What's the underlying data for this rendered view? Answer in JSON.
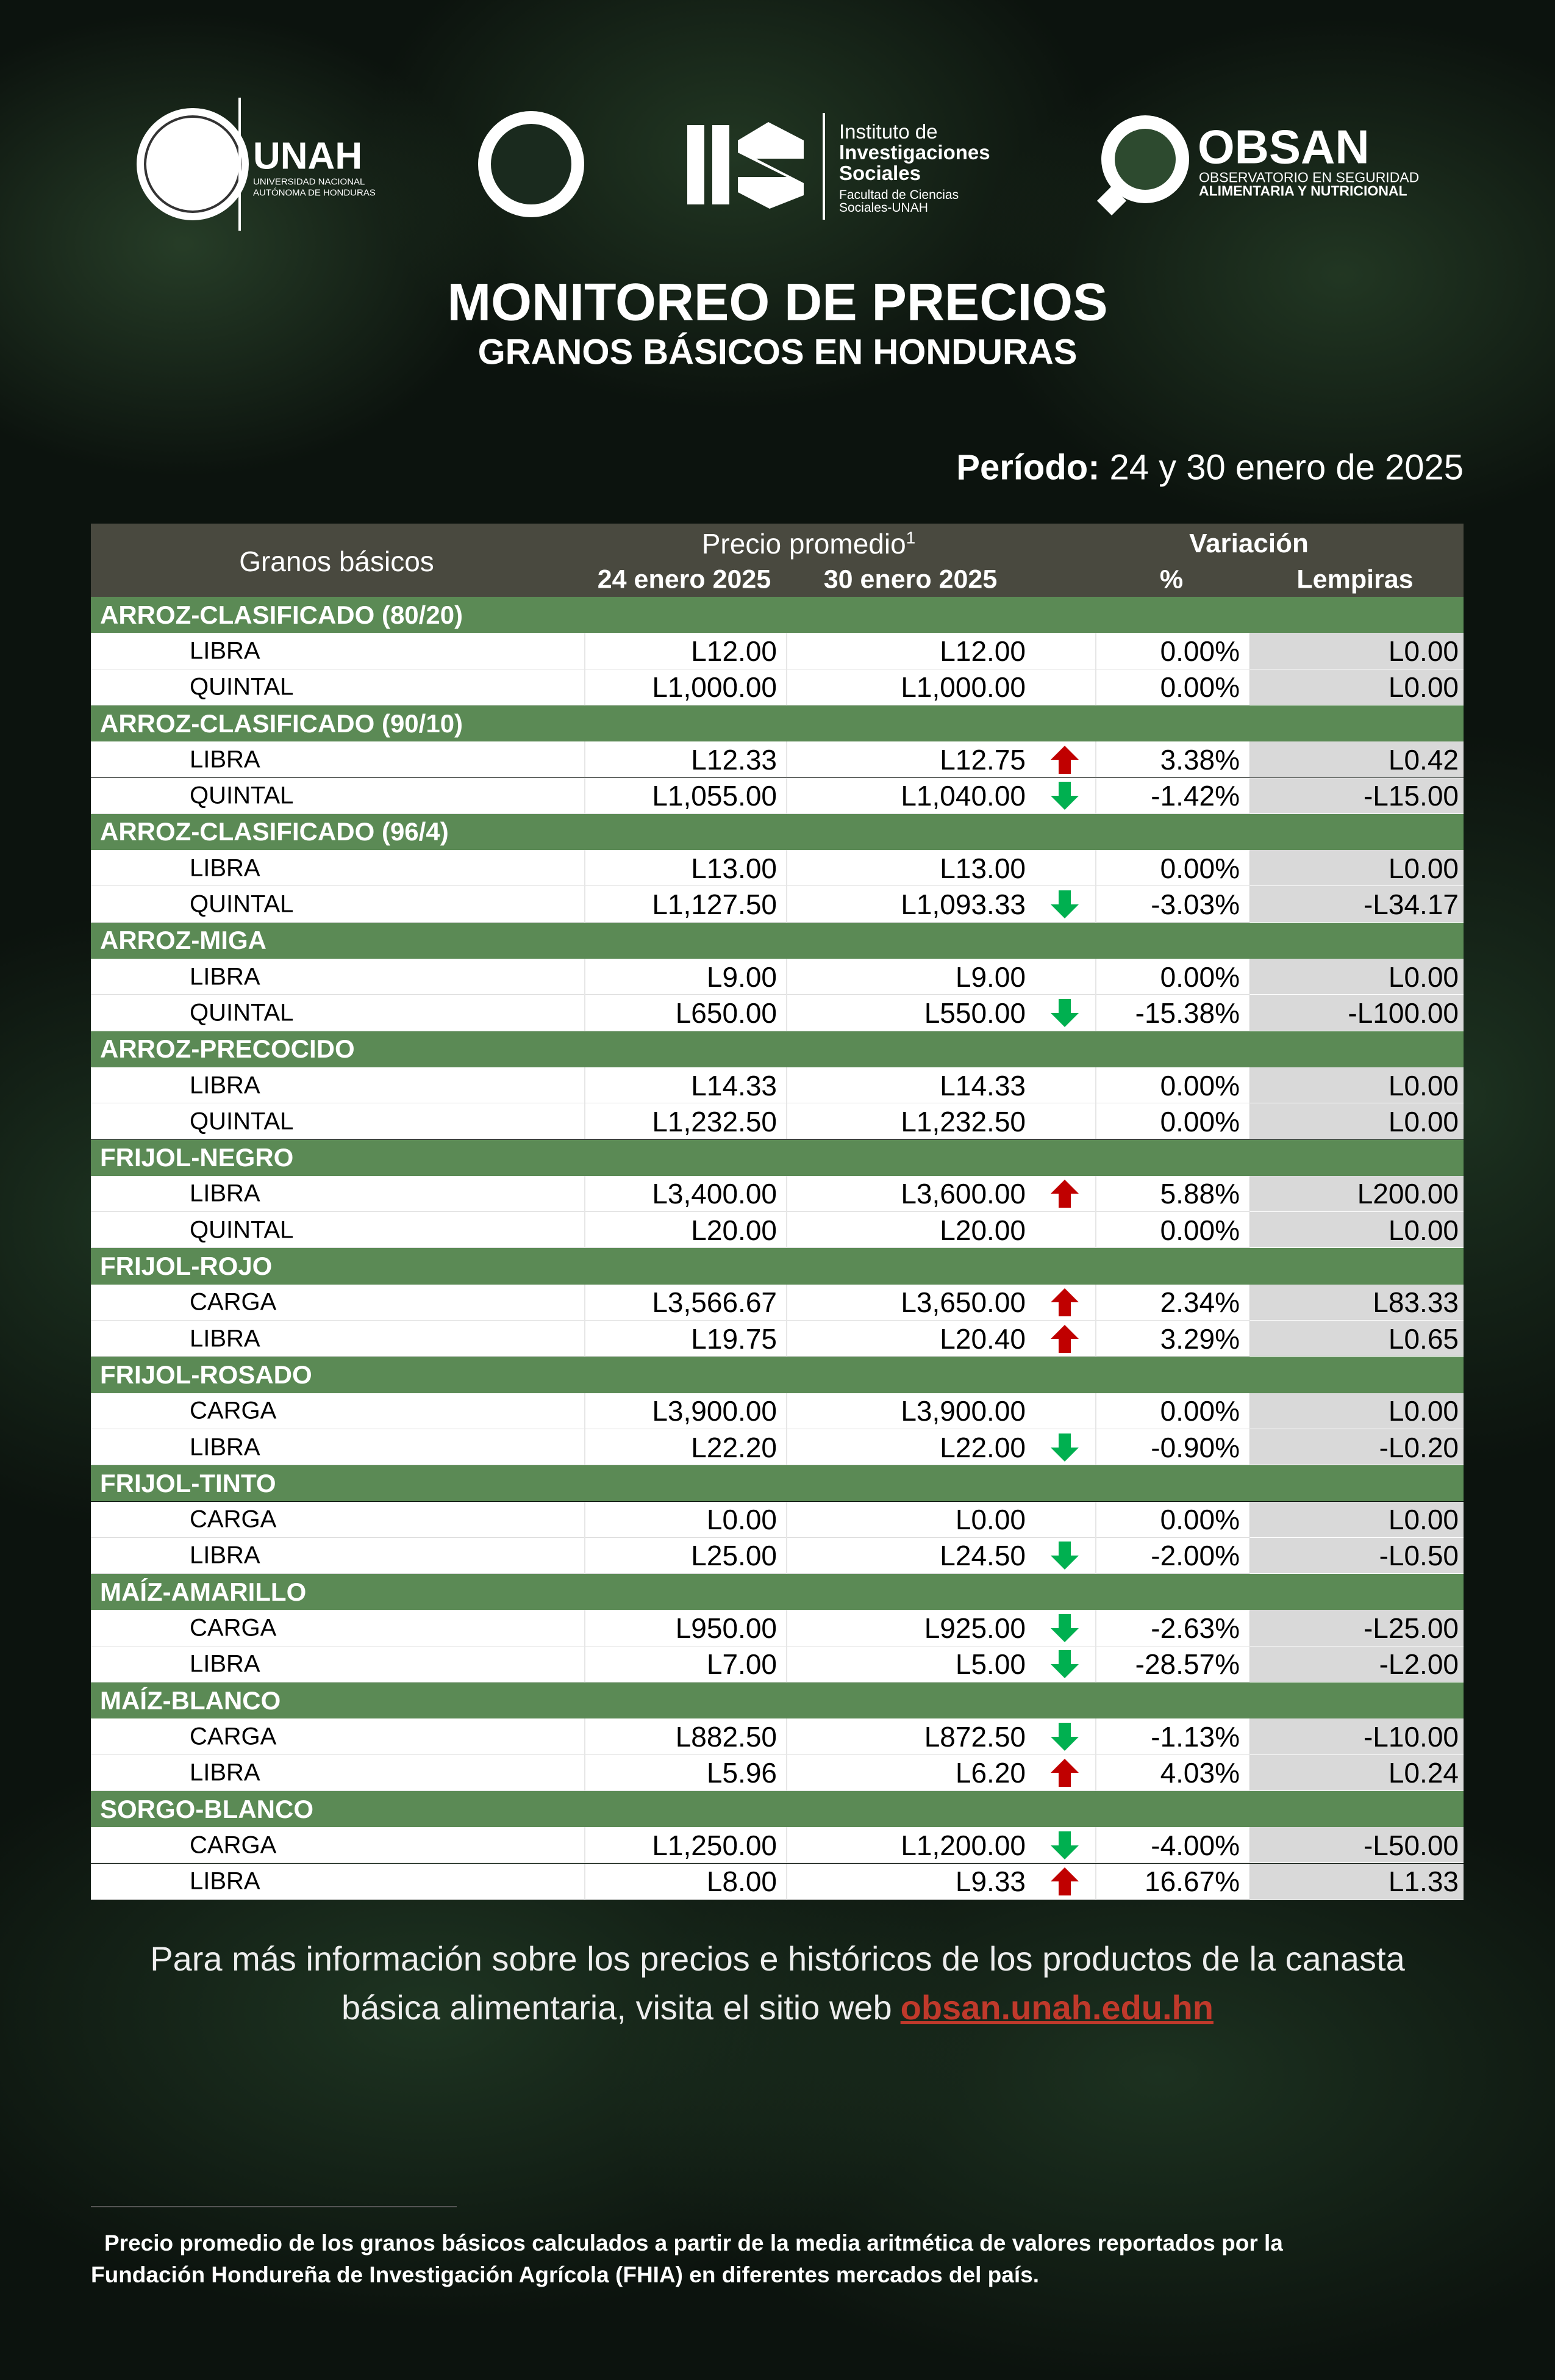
{
  "logos": {
    "unah": {
      "name": "UNAH",
      "subtitle": [
        "UNIVERSIDAD NACIONAL",
        "AUTÓNOMA DE HONDURAS"
      ]
    },
    "iis": {
      "lines": [
        "Instituto de",
        "Investigaciones",
        "Sociales"
      ],
      "faculty": [
        "Facultad de Ciencias",
        "Sociales-UNAH"
      ]
    },
    "obsan": {
      "name": "OBSAN",
      "lines": [
        "OBSERVATORIO EN SEGURIDAD",
        "ALIMENTARIA Y NUTRICIONAL"
      ]
    }
  },
  "header": {
    "title": "MONITOREO DE PRECIOS",
    "subtitle": "GRANOS BÁSICOS EN HONDURAS",
    "period_label": "Período:",
    "period": "24 y 30 enero de 2025"
  },
  "table": {
    "columns": {
      "product": "Granos básicos",
      "price": "Precio promedio",
      "price_note": "1",
      "date_1": "24 enero 2025",
      "date_2": "30 enero 2025",
      "variation": "Variación",
      "pct": "%",
      "lempiras": "Lempiras"
    },
    "groups": [
      {
        "name": "ARROZ-CLASIFICADO (80/20)",
        "rows": [
          {
            "unit": "LIBRA",
            "price_1": "L12.00",
            "price_2": "L12.00",
            "pct": "0.00%",
            "lempiras": "L0.00"
          },
          {
            "unit": "QUINTAL",
            "price_1": "L1,000.00",
            "price_2": "L1,000.00",
            "pct": "0.00%",
            "lempiras": "L0.00"
          }
        ]
      },
      {
        "name": "ARROZ-CLASIFICADO (90/10)",
        "rows": [
          {
            "unit": "LIBRA",
            "price_1": "L12.33",
            "price_2": "L12.75",
            "arrow": "up",
            "pct": "3.38%",
            "lempiras": "L0.42"
          },
          {
            "unit": "QUINTAL",
            "price_1": "L1,055.00",
            "price_2": "L1,040.00",
            "arrow": "down",
            "pct": "-1.42%",
            "lempiras": "-L15.00"
          }
        ]
      },
      {
        "name": "ARROZ-CLASIFICADO (96/4)",
        "rows": [
          {
            "unit": "LIBRA",
            "price_1": "L13.00",
            "price_2": "L13.00",
            "pct": "0.00%",
            "lempiras": "L0.00"
          },
          {
            "unit": "QUINTAL",
            "price_1": "L1,127.50",
            "price_2": "L1,093.33",
            "arrow": "down",
            "pct": "-3.03%",
            "lempiras": "-L34.17"
          }
        ]
      },
      {
        "name": "ARROZ-MIGA",
        "rows": [
          {
            "unit": "LIBRA",
            "price_1": "L9.00",
            "price_2": "L9.00",
            "pct": "0.00%",
            "lempiras": "L0.00"
          },
          {
            "unit": "QUINTAL",
            "price_1": "L650.00",
            "price_2": "L550.00",
            "arrow": "down",
            "pct": "-15.38%",
            "lempiras": "-L100.00"
          }
        ]
      },
      {
        "name": "ARROZ-PRECOCIDO",
        "rows": [
          {
            "unit": "LIBRA",
            "price_1": "L14.33",
            "price_2": "L14.33",
            "pct": "0.00%",
            "lempiras": "L0.00"
          },
          {
            "unit": "QUINTAL",
            "price_1": "L1,232.50",
            "price_2": "L1,232.50",
            "pct": "0.00%",
            "lempiras": "L0.00"
          }
        ]
      },
      {
        "name": "FRIJOL-NEGRO",
        "rows": [
          {
            "unit": "LIBRA",
            "price_1": "L3,400.00",
            "price_2": "L3,600.00",
            "arrow": "up",
            "pct": "5.88%",
            "lempiras": "L200.00"
          },
          {
            "unit": "QUINTAL",
            "price_1": "L20.00",
            "price_2": "L20.00",
            "pct": "0.00%",
            "lempiras": "L0.00"
          }
        ]
      },
      {
        "name": "FRIJOL-ROJO",
        "rows": [
          {
            "unit": "CARGA",
            "price_1": "L3,566.67",
            "price_2": "L3,650.00",
            "arrow": "up",
            "pct": "2.34%",
            "lempiras": "L83.33"
          },
          {
            "unit": "LIBRA",
            "price_1": "L19.75",
            "price_2": "L20.40",
            "arrow": "up",
            "pct": "3.29%",
            "lempiras": "L0.65"
          }
        ]
      },
      {
        "name": "FRIJOL-ROSADO",
        "rows": [
          {
            "unit": "CARGA",
            "price_1": "L3,900.00",
            "price_2": "L3,900.00",
            "pct": "0.00%",
            "lempiras": "L0.00"
          },
          {
            "unit": "LIBRA",
            "price_1": "L22.20",
            "price_2": "L22.00",
            "arrow": "down",
            "pct": "-0.90%",
            "lempiras": "-L0.20"
          }
        ]
      },
      {
        "name": "FRIJOL-TINTO",
        "rows": [
          {
            "unit": "CARGA",
            "price_1": "L0.00",
            "price_2": "L0.00",
            "pct": "0.00%",
            "lempiras": "L0.00"
          },
          {
            "unit": "LIBRA",
            "price_1": "L25.00",
            "price_2": "L24.50",
            "arrow": "down",
            "pct": "-2.00%",
            "lempiras": "-L0.50"
          }
        ]
      },
      {
        "name": "MAÍZ-AMARILLO",
        "rows": [
          {
            "unit": "CARGA",
            "price_1": "L950.00",
            "price_2": "L925.00",
            "arrow": "down",
            "pct": "-2.63%",
            "lempiras": "-L25.00"
          },
          {
            "unit": "LIBRA",
            "price_1": "L7.00",
            "price_2": "L5.00",
            "arrow": "down",
            "pct": "-28.57%",
            "lempiras": "-L2.00"
          }
        ]
      },
      {
        "name": "MAÍZ-BLANCO",
        "rows": [
          {
            "unit": "CARGA",
            "price_1": "L882.50",
            "price_2": "L872.50",
            "arrow": "down",
            "pct": "-1.13%",
            "lempiras": "-L10.00"
          },
          {
            "unit": "LIBRA",
            "price_1": "L5.96",
            "price_2": "L6.20",
            "arrow": "up",
            "pct": "4.03%",
            "lempiras": "L0.24"
          }
        ]
      },
      {
        "name": "SORGO-BLANCO",
        "rows": [
          {
            "unit": "CARGA",
            "price_1": "L1,250.00",
            "price_2": "L1,200.00",
            "arrow": "down",
            "pct": "-4.00%",
            "lempiras": "-L50.00"
          },
          {
            "unit": "LIBRA",
            "price_1": "L8.00",
            "price_2": "L9.33",
            "arrow": "up",
            "pct": "16.67%",
            "lempiras": "L1.33"
          }
        ]
      }
    ]
  },
  "footer": {
    "text": "Para más información sobre los precios e históricos de los productos de la canasta básica alimentaria, visita el sitio web",
    "link": "obsan.unah.edu.hn"
  },
  "footnote": "Precio promedio de los granos básicos calculados a partir de la media aritmética de valores reportados por la Fundación Hondureña de Investigación Agrícola (FHIA) en diferentes mercados del país."
}
